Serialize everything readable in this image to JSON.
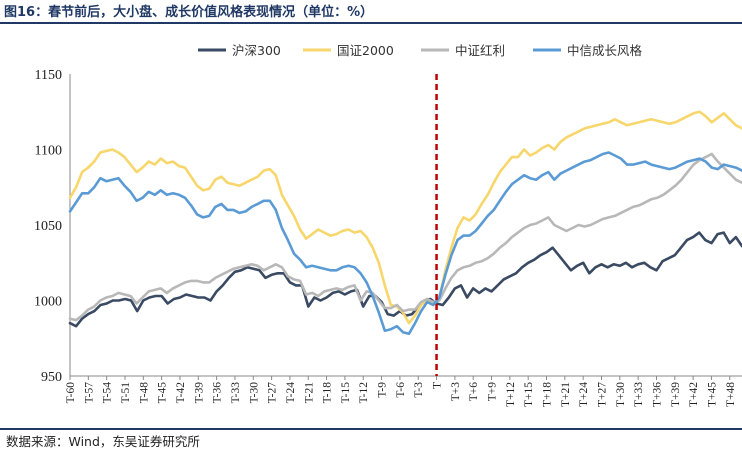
{
  "header": {
    "title": "图16：春节前后，大小盘、成长价值风格表现情况（单位：%）"
  },
  "footer": {
    "source": "数据来源：Wind，东吴证券研究所"
  },
  "colors": {
    "title": "#1f3864",
    "rule": "#1f3864",
    "hs300": "#3a4a63",
    "gz2000": "#f7d66b",
    "hongli": "#b8b8b8",
    "chengzhang": "#5b9bd5",
    "divider": "#c00000"
  },
  "chart_data": {
    "type": "line",
    "ylim": [
      950,
      1150
    ],
    "yticks": [
      950,
      1000,
      1050,
      1100,
      1150
    ],
    "x_tick_labels": [
      "T-60",
      "T-57",
      "T-54",
      "T-51",
      "T-48",
      "T-45",
      "T-42",
      "T-39",
      "T-36",
      "T-33",
      "T-30",
      "T-27",
      "T-24",
      "T-21",
      "T-18",
      "T-15",
      "T-12",
      "T-9",
      "T-6",
      "T-3",
      "T",
      "T+3",
      "T+6",
      "T+9",
      "T+12",
      "T+15",
      "T+18",
      "T+21",
      "T+24",
      "T+27",
      "T+30",
      "T+33",
      "T+36",
      "T+39",
      "T+42",
      "T+45",
      "T+48"
    ],
    "x_start": -60,
    "x_end": 50,
    "divider_x": 0,
    "legend_position": "top",
    "series": [
      {
        "name": "沪深300",
        "color_key": "hs300",
        "values": [
          985,
          983,
          988,
          991,
          993,
          997,
          998,
          1000,
          1000,
          1001,
          1000,
          993,
          1000,
          1002,
          1003,
          1003,
          998,
          1001,
          1002,
          1004,
          1003,
          1002,
          1002,
          1000,
          1006,
          1010,
          1015,
          1019,
          1020,
          1022,
          1021,
          1020,
          1015,
          1017,
          1018,
          1018,
          1012,
          1010,
          1010,
          996,
          1002,
          1000,
          1002,
          1005,
          1006,
          1004,
          1006,
          1007,
          996,
          1003,
          1003,
          999,
          991,
          990,
          993,
          990,
          991,
          996,
          1000,
          1001,
          998,
          997,
          1002,
          1008,
          1010,
          1002,
          1008,
          1005,
          1008,
          1006,
          1010,
          1014,
          1016,
          1018,
          1022,
          1025,
          1027,
          1030,
          1032,
          1035,
          1030,
          1025,
          1020,
          1023,
          1025,
          1018,
          1022,
          1024,
          1022,
          1024,
          1023,
          1025,
          1022,
          1024,
          1025,
          1022,
          1020,
          1026,
          1028,
          1030,
          1035,
          1040,
          1042,
          1045,
          1040,
          1038,
          1044,
          1045,
          1038,
          1042,
          1036
        ]
      },
      {
        "name": "国证2000",
        "color_key": "gz2000",
        "values": [
          1068,
          1075,
          1085,
          1088,
          1092,
          1098,
          1099,
          1100,
          1098,
          1095,
          1090,
          1085,
          1088,
          1092,
          1090,
          1094,
          1091,
          1092,
          1089,
          1088,
          1082,
          1076,
          1073,
          1074,
          1080,
          1082,
          1078,
          1077,
          1076,
          1078,
          1080,
          1082,
          1086,
          1087,
          1083,
          1070,
          1063,
          1056,
          1047,
          1041,
          1044,
          1047,
          1045,
          1043,
          1044,
          1046,
          1047,
          1045,
          1046,
          1042,
          1035,
          1025,
          1010,
          997,
          996,
          992,
          985,
          990,
          997,
          1000,
          997,
          1002,
          1020,
          1035,
          1048,
          1055,
          1053,
          1057,
          1064,
          1070,
          1078,
          1085,
          1090,
          1095,
          1095,
          1100,
          1096,
          1098,
          1101,
          1103,
          1100,
          1105,
          1108,
          1110,
          1112,
          1114,
          1115,
          1116,
          1117,
          1118,
          1120,
          1118,
          1116,
          1117,
          1118,
          1119,
          1120,
          1119,
          1118,
          1117,
          1118,
          1120,
          1122,
          1124,
          1125,
          1122,
          1118,
          1121,
          1124,
          1120,
          1116,
          1114
        ]
      },
      {
        "name": "中证红利",
        "color_key": "hongli",
        "values": [
          988,
          987,
          990,
          994,
          996,
          1000,
          1002,
          1003,
          1005,
          1004,
          1003,
          998,
          1002,
          1006,
          1007,
          1008,
          1005,
          1008,
          1010,
          1012,
          1013,
          1013,
          1012,
          1012,
          1015,
          1017,
          1019,
          1021,
          1022,
          1023,
          1024,
          1023,
          1020,
          1022,
          1024,
          1022,
          1016,
          1014,
          1013,
          1004,
          1005,
          1003,
          1006,
          1007,
          1008,
          1007,
          1009,
          1010,
          1000,
          1006,
          1005,
          1000,
          995,
          995,
          997,
          993,
          994,
          994,
          999,
          1001,
          999,
          1000,
          1008,
          1015,
          1020,
          1022,
          1023,
          1025,
          1026,
          1028,
          1031,
          1035,
          1038,
          1042,
          1045,
          1048,
          1050,
          1051,
          1053,
          1055,
          1050,
          1048,
          1046,
          1048,
          1050,
          1049,
          1050,
          1052,
          1054,
          1055,
          1056,
          1058,
          1060,
          1062,
          1063,
          1065,
          1067,
          1068,
          1070,
          1073,
          1076,
          1080,
          1085,
          1090,
          1093,
          1095,
          1097,
          1092,
          1088,
          1084,
          1080,
          1078
        ]
      },
      {
        "name": "中信成长风格",
        "color_key": "chengzhang",
        "values": [
          1059,
          1065,
          1071,
          1071,
          1075,
          1081,
          1079,
          1080,
          1081,
          1076,
          1072,
          1066,
          1068,
          1072,
          1070,
          1073,
          1070,
          1071,
          1070,
          1068,
          1063,
          1057,
          1055,
          1056,
          1062,
          1064,
          1060,
          1060,
          1058,
          1059,
          1062,
          1064,
          1066,
          1066,
          1060,
          1048,
          1040,
          1031,
          1027,
          1022,
          1023,
          1022,
          1021,
          1020,
          1020,
          1022,
          1023,
          1022,
          1018,
          1012,
          1003,
          992,
          980,
          981,
          983,
          979,
          978,
          985,
          993,
          999,
          997,
          1002,
          1017,
          1030,
          1040,
          1043,
          1043,
          1046,
          1051,
          1056,
          1060,
          1066,
          1072,
          1077,
          1080,
          1083,
          1081,
          1080,
          1083,
          1085,
          1080,
          1084,
          1086,
          1088,
          1090,
          1092,
          1093,
          1095,
          1097,
          1098,
          1096,
          1094,
          1090,
          1090,
          1091,
          1092,
          1090,
          1089,
          1088,
          1087,
          1088,
          1090,
          1092,
          1093,
          1094,
          1092,
          1088,
          1087,
          1090,
          1089,
          1088,
          1086
        ]
      }
    ]
  }
}
